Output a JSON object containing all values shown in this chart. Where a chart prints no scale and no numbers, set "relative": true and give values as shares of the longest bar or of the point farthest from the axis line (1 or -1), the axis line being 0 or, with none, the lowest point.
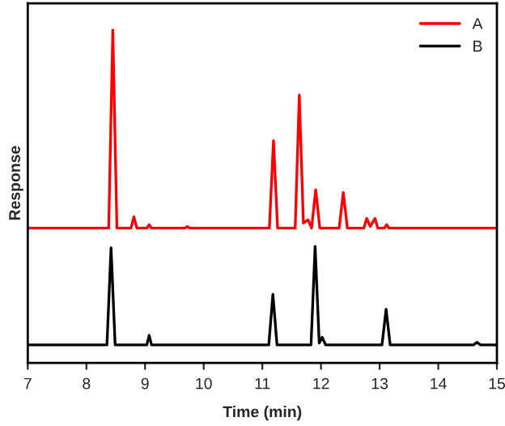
{
  "chart_data": {
    "type": "line",
    "xlabel": "Time (min)",
    "ylabel": "Response",
    "relative": true,
    "xlim": [
      7,
      15
    ],
    "xticks": [
      7,
      8,
      9,
      10,
      11,
      12,
      13,
      14,
      15
    ],
    "legend": "top right",
    "grid": false,
    "tick_labels": "x",
    "series": [
      {
        "name": "A",
        "color": "#ff0000",
        "x": [
          7,
          8.38,
          8.45,
          8.52,
          8.76,
          8.81,
          8.86,
          9.03,
          9.07,
          9.11,
          9.68,
          9.72,
          9.76,
          11.12,
          11.19,
          11.26,
          11.56,
          11.63,
          11.7,
          11.78,
          11.84,
          11.91,
          11.98,
          12.31,
          12.38,
          12.45,
          12.73,
          12.78,
          12.84,
          12.92,
          12.97,
          13.08,
          13.12,
          13.16,
          15
        ],
        "values": [
          0.405,
          0.405,
          1.0,
          0.405,
          0.405,
          0.439,
          0.405,
          0.405,
          0.415,
          0.405,
          0.405,
          0.41,
          0.405,
          0.405,
          0.668,
          0.405,
          0.405,
          0.805,
          0.42,
          0.43,
          0.405,
          0.52,
          0.405,
          0.405,
          0.512,
          0.405,
          0.405,
          0.434,
          0.41,
          0.434,
          0.405,
          0.405,
          0.415,
          0.405,
          0.405
        ]
      },
      {
        "name": "B",
        "color": "#000000",
        "x": [
          7,
          8.35,
          8.42,
          8.49,
          9.03,
          9.07,
          9.11,
          11.11,
          11.18,
          11.25,
          11.83,
          11.9,
          11.97,
          12.02,
          12.08,
          13.04,
          13.11,
          13.18,
          14.6,
          14.66,
          14.72,
          15
        ],
        "values": [
          0.054,
          0.054,
          0.346,
          0.054,
          0.054,
          0.083,
          0.054,
          0.054,
          0.206,
          0.054,
          0.054,
          0.35,
          0.06,
          0.077,
          0.054,
          0.054,
          0.161,
          0.054,
          0.054,
          0.062,
          0.054,
          0.054
        ]
      }
    ]
  }
}
